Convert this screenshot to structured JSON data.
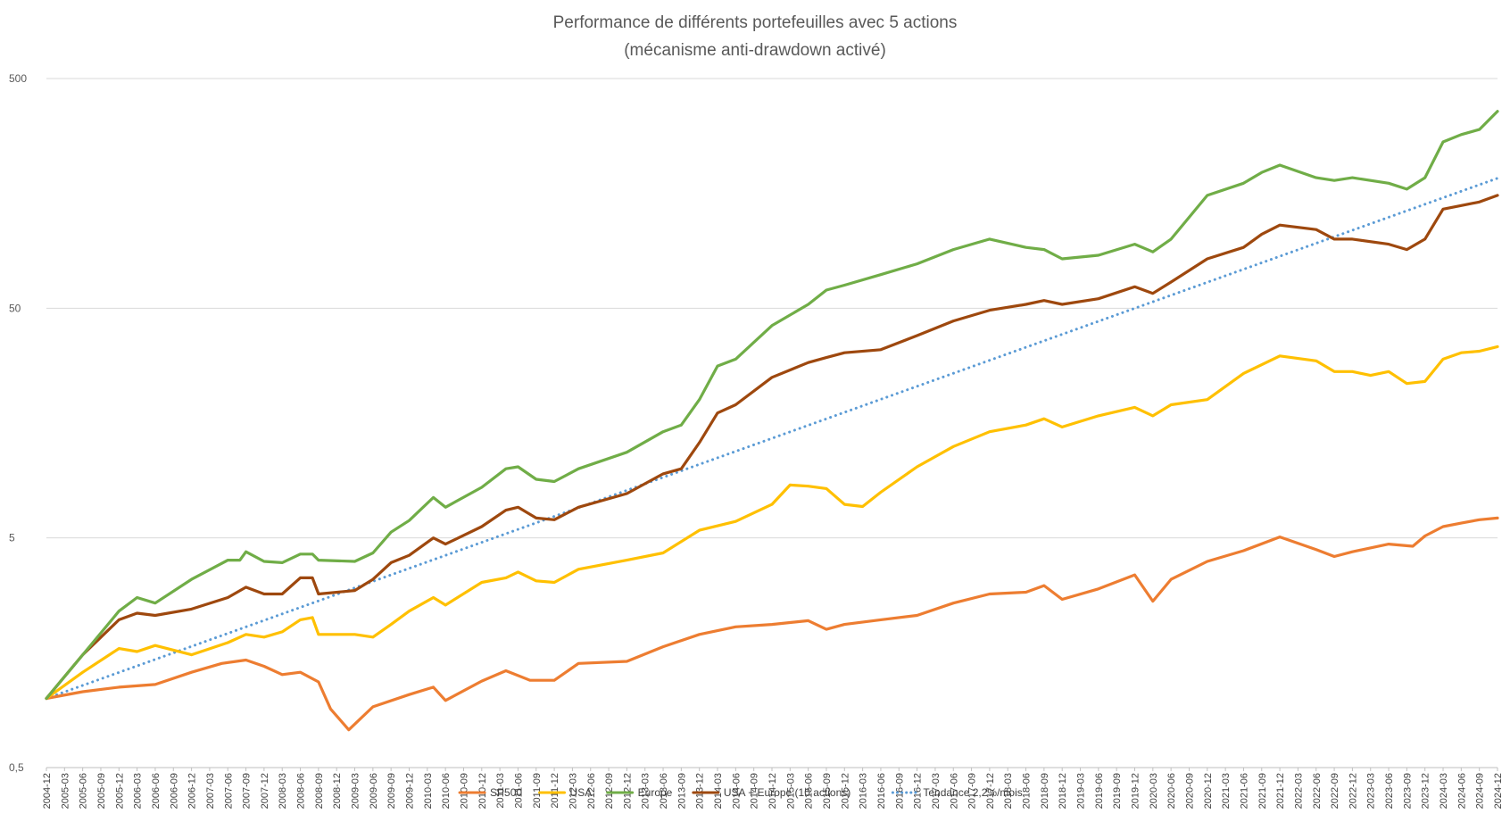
{
  "chart_data": {
    "type": "line",
    "title": "Performance de différents portefeuilles avec 5 actions",
    "subtitle": "(mécanisme anti-drawdown activé)",
    "y_scale": "log",
    "ylim": [
      0.5,
      500
    ],
    "y_ticks": [
      {
        "value": 500,
        "label": "500"
      },
      {
        "value": 50,
        "label": "50"
      },
      {
        "value": 5,
        "label": "5"
      },
      {
        "value": 0.5,
        "label": "0,5"
      }
    ],
    "x_start": "2004-12",
    "x_end": "2024-12",
    "x_tick_labels": [
      "2004-12",
      "2005-03",
      "2005-06",
      "2005-09",
      "2005-12",
      "2006-03",
      "2006-06",
      "2006-09",
      "2006-12",
      "2007-03",
      "2007-06",
      "2007-09",
      "2007-12",
      "2008-03",
      "2008-06",
      "2008-09",
      "2008-12",
      "2009-03",
      "2009-06",
      "2009-09",
      "2009-12",
      "2010-03",
      "2010-06",
      "2010-09",
      "2010-12",
      "2011-03",
      "2011-06",
      "2011-09",
      "2011-12",
      "2012-03",
      "2012-06",
      "2012-09",
      "2012-12",
      "2013-03",
      "2013-06",
      "2013-09",
      "2013-12",
      "2014-03",
      "2014-06",
      "2014-09",
      "2014-12",
      "2015-03",
      "2015-06",
      "2015-09",
      "2015-12",
      "2016-03",
      "2016-06",
      "2016-09",
      "2016-12",
      "2017-03",
      "2017-06",
      "2017-09",
      "2017-12",
      "2018-03",
      "2018-06",
      "2018-09",
      "2018-12",
      "2019-03",
      "2019-06",
      "2019-09",
      "2019-12",
      "2020-03",
      "2020-06",
      "2020-09",
      "2020-12",
      "2021-03",
      "2021-06",
      "2021-09",
      "2021-12",
      "2022-03",
      "2022-06",
      "2022-09",
      "2022-12",
      "2023-03",
      "2023-06",
      "2023-09",
      "2023-12",
      "2024-03",
      "2024-06",
      "2024-09",
      "2024-12"
    ],
    "legend_position": "bottom",
    "grid": true,
    "series": [
      {
        "name": "SP500",
        "color": "#ED7D31",
        "style": "solid",
        "points": [
          [
            "2004-12",
            1.0
          ],
          [
            "2005-06",
            1.07
          ],
          [
            "2005-12",
            1.12
          ],
          [
            "2006-06",
            1.15
          ],
          [
            "2006-12",
            1.3
          ],
          [
            "2007-05",
            1.42
          ],
          [
            "2007-09",
            1.47
          ],
          [
            "2007-12",
            1.38
          ],
          [
            "2008-03",
            1.27
          ],
          [
            "2008-06",
            1.3
          ],
          [
            "2008-09",
            1.18
          ],
          [
            "2008-11",
            0.9
          ],
          [
            "2009-02",
            0.73
          ],
          [
            "2009-06",
            0.92
          ],
          [
            "2009-12",
            1.04
          ],
          [
            "2010-04",
            1.12
          ],
          [
            "2010-06",
            0.98
          ],
          [
            "2010-12",
            1.19
          ],
          [
            "2011-04",
            1.32
          ],
          [
            "2011-08",
            1.2
          ],
          [
            "2011-12",
            1.2
          ],
          [
            "2012-04",
            1.42
          ],
          [
            "2012-12",
            1.45
          ],
          [
            "2013-06",
            1.68
          ],
          [
            "2013-12",
            1.9
          ],
          [
            "2014-06",
            2.05
          ],
          [
            "2014-12",
            2.1
          ],
          [
            "2015-06",
            2.18
          ],
          [
            "2015-09",
            2.0
          ],
          [
            "2015-12",
            2.1
          ],
          [
            "2016-06",
            2.2
          ],
          [
            "2016-12",
            2.3
          ],
          [
            "2017-06",
            2.6
          ],
          [
            "2017-12",
            2.85
          ],
          [
            "2018-06",
            2.9
          ],
          [
            "2018-09",
            3.1
          ],
          [
            "2018-12",
            2.7
          ],
          [
            "2019-06",
            3.0
          ],
          [
            "2019-12",
            3.45
          ],
          [
            "2020-03",
            2.65
          ],
          [
            "2020-06",
            3.3
          ],
          [
            "2020-12",
            3.95
          ],
          [
            "2021-06",
            4.4
          ],
          [
            "2021-12",
            5.05
          ],
          [
            "2022-06",
            4.45
          ],
          [
            "2022-09",
            4.15
          ],
          [
            "2022-12",
            4.35
          ],
          [
            "2023-06",
            4.7
          ],
          [
            "2023-10",
            4.6
          ],
          [
            "2023-12",
            5.1
          ],
          [
            "2024-03",
            5.6
          ],
          [
            "2024-06",
            5.8
          ],
          [
            "2024-09",
            6.0
          ],
          [
            "2024-12",
            6.1
          ]
        ]
      },
      {
        "name": "USA",
        "color": "#FFC000",
        "style": "solid",
        "points": [
          [
            "2004-12",
            1.0
          ],
          [
            "2005-06",
            1.3
          ],
          [
            "2005-12",
            1.65
          ],
          [
            "2006-03",
            1.6
          ],
          [
            "2006-06",
            1.7
          ],
          [
            "2006-12",
            1.55
          ],
          [
            "2007-06",
            1.75
          ],
          [
            "2007-09",
            1.9
          ],
          [
            "2007-12",
            1.85
          ],
          [
            "2008-03",
            1.95
          ],
          [
            "2008-06",
            2.2
          ],
          [
            "2008-08",
            2.25
          ],
          [
            "2008-09",
            1.9
          ],
          [
            "2009-03",
            1.9
          ],
          [
            "2009-06",
            1.85
          ],
          [
            "2009-09",
            2.1
          ],
          [
            "2009-12",
            2.4
          ],
          [
            "2010-04",
            2.75
          ],
          [
            "2010-06",
            2.55
          ],
          [
            "2010-12",
            3.2
          ],
          [
            "2011-04",
            3.35
          ],
          [
            "2011-06",
            3.55
          ],
          [
            "2011-09",
            3.25
          ],
          [
            "2011-12",
            3.2
          ],
          [
            "2012-04",
            3.65
          ],
          [
            "2012-12",
            4.0
          ],
          [
            "2013-06",
            4.3
          ],
          [
            "2013-12",
            5.4
          ],
          [
            "2014-06",
            5.9
          ],
          [
            "2014-12",
            7.0
          ],
          [
            "2015-03",
            8.5
          ],
          [
            "2015-06",
            8.4
          ],
          [
            "2015-09",
            8.2
          ],
          [
            "2015-12",
            7.0
          ],
          [
            "2016-03",
            6.85
          ],
          [
            "2016-06",
            7.9
          ],
          [
            "2016-12",
            10.2
          ],
          [
            "2017-06",
            12.5
          ],
          [
            "2017-12",
            14.5
          ],
          [
            "2018-06",
            15.5
          ],
          [
            "2018-09",
            16.5
          ],
          [
            "2018-12",
            15.2
          ],
          [
            "2019-06",
            17.0
          ],
          [
            "2019-12",
            18.5
          ],
          [
            "2020-03",
            17.0
          ],
          [
            "2020-06",
            19.0
          ],
          [
            "2020-12",
            20.0
          ],
          [
            "2021-06",
            26.0
          ],
          [
            "2021-12",
            31.0
          ],
          [
            "2022-06",
            29.5
          ],
          [
            "2022-09",
            26.5
          ],
          [
            "2022-12",
            26.5
          ],
          [
            "2023-03",
            25.5
          ],
          [
            "2023-06",
            26.5
          ],
          [
            "2023-09",
            23.5
          ],
          [
            "2023-12",
            24.0
          ],
          [
            "2024-03",
            30.0
          ],
          [
            "2024-06",
            32.0
          ],
          [
            "2024-09",
            32.5
          ],
          [
            "2024-12",
            34.0
          ]
        ]
      },
      {
        "name": "Europe",
        "color": "#70AD47",
        "style": "solid",
        "points": [
          [
            "2004-12",
            1.0
          ],
          [
            "2005-06",
            1.55
          ],
          [
            "2005-12",
            2.4
          ],
          [
            "2006-03",
            2.75
          ],
          [
            "2006-06",
            2.6
          ],
          [
            "2006-12",
            3.3
          ],
          [
            "2007-06",
            4.0
          ],
          [
            "2007-08",
            4.0
          ],
          [
            "2007-09",
            4.35
          ],
          [
            "2007-12",
            3.95
          ],
          [
            "2008-03",
            3.9
          ],
          [
            "2008-06",
            4.25
          ],
          [
            "2008-08",
            4.25
          ],
          [
            "2008-09",
            4.0
          ],
          [
            "2009-03",
            3.95
          ],
          [
            "2009-06",
            4.3
          ],
          [
            "2009-09",
            5.3
          ],
          [
            "2009-12",
            5.95
          ],
          [
            "2010-04",
            7.5
          ],
          [
            "2010-06",
            6.8
          ],
          [
            "2010-12",
            8.3
          ],
          [
            "2011-04",
            10.0
          ],
          [
            "2011-06",
            10.2
          ],
          [
            "2011-09",
            9.0
          ],
          [
            "2011-12",
            8.8
          ],
          [
            "2012-04",
            10.0
          ],
          [
            "2012-12",
            11.8
          ],
          [
            "2013-06",
            14.5
          ],
          [
            "2013-09",
            15.5
          ],
          [
            "2013-12",
            20.0
          ],
          [
            "2014-03",
            28.0
          ],
          [
            "2014-06",
            30.0
          ],
          [
            "2014-12",
            42.0
          ],
          [
            "2015-06",
            52.0
          ],
          [
            "2015-09",
            60.0
          ],
          [
            "2015-12",
            63.0
          ],
          [
            "2016-06",
            70.0
          ],
          [
            "2016-12",
            78.0
          ],
          [
            "2017-06",
            90.0
          ],
          [
            "2017-12",
            100.0
          ],
          [
            "2018-06",
            92.0
          ],
          [
            "2018-09",
            90.0
          ],
          [
            "2018-12",
            82.0
          ],
          [
            "2019-06",
            85.0
          ],
          [
            "2019-12",
            95.0
          ],
          [
            "2020-03",
            88.0
          ],
          [
            "2020-06",
            100.0
          ],
          [
            "2020-12",
            155.0
          ],
          [
            "2021-06",
            175.0
          ],
          [
            "2021-09",
            195.0
          ],
          [
            "2021-12",
            210.0
          ],
          [
            "2022-06",
            185.0
          ],
          [
            "2022-09",
            180.0
          ],
          [
            "2022-12",
            185.0
          ],
          [
            "2023-06",
            175.0
          ],
          [
            "2023-09",
            165.0
          ],
          [
            "2023-12",
            185.0
          ],
          [
            "2024-03",
            265.0
          ],
          [
            "2024-06",
            285.0
          ],
          [
            "2024-09",
            300.0
          ],
          [
            "2024-12",
            360.0
          ]
        ]
      },
      {
        "name": "USA + Europe (10 actions)",
        "color": "#9E480E",
        "style": "solid",
        "points": [
          [
            "2004-12",
            1.0
          ],
          [
            "2005-06",
            1.55
          ],
          [
            "2005-12",
            2.2
          ],
          [
            "2006-03",
            2.35
          ],
          [
            "2006-06",
            2.3
          ],
          [
            "2006-12",
            2.45
          ],
          [
            "2007-06",
            2.75
          ],
          [
            "2007-09",
            3.05
          ],
          [
            "2007-12",
            2.85
          ],
          [
            "2008-03",
            2.85
          ],
          [
            "2008-06",
            3.35
          ],
          [
            "2008-08",
            3.35
          ],
          [
            "2008-09",
            2.85
          ],
          [
            "2009-03",
            2.95
          ],
          [
            "2009-06",
            3.3
          ],
          [
            "2009-09",
            3.9
          ],
          [
            "2009-12",
            4.2
          ],
          [
            "2010-04",
            5.0
          ],
          [
            "2010-06",
            4.7
          ],
          [
            "2010-12",
            5.6
          ],
          [
            "2011-04",
            6.6
          ],
          [
            "2011-06",
            6.8
          ],
          [
            "2011-09",
            6.1
          ],
          [
            "2011-12",
            6.0
          ],
          [
            "2012-04",
            6.8
          ],
          [
            "2012-12",
            7.8
          ],
          [
            "2013-06",
            9.5
          ],
          [
            "2013-09",
            10.0
          ],
          [
            "2013-12",
            13.0
          ],
          [
            "2014-03",
            17.5
          ],
          [
            "2014-06",
            19.0
          ],
          [
            "2014-12",
            25.0
          ],
          [
            "2015-06",
            29.0
          ],
          [
            "2015-09",
            30.5
          ],
          [
            "2015-12",
            32.0
          ],
          [
            "2016-06",
            33.0
          ],
          [
            "2016-12",
            38.0
          ],
          [
            "2017-06",
            44.0
          ],
          [
            "2017-12",
            49.0
          ],
          [
            "2018-06",
            52.0
          ],
          [
            "2018-09",
            54.0
          ],
          [
            "2018-12",
            52.0
          ],
          [
            "2019-06",
            55.0
          ],
          [
            "2019-12",
            62.0
          ],
          [
            "2020-03",
            58.0
          ],
          [
            "2020-06",
            65.0
          ],
          [
            "2020-12",
            82.0
          ],
          [
            "2021-06",
            92.0
          ],
          [
            "2021-09",
            105.0
          ],
          [
            "2021-12",
            115.0
          ],
          [
            "2022-06",
            110.0
          ],
          [
            "2022-09",
            100.0
          ],
          [
            "2022-12",
            100.0
          ],
          [
            "2023-06",
            95.0
          ],
          [
            "2023-09",
            90.0
          ],
          [
            "2023-12",
            100.0
          ],
          [
            "2024-03",
            135.0
          ],
          [
            "2024-06",
            140.0
          ],
          [
            "2024-09",
            145.0
          ],
          [
            "2024-12",
            155.0
          ]
        ]
      },
      {
        "name": "Tendance 2,2%/mois",
        "color": "#5B9BD5",
        "style": "dotted",
        "points": [
          [
            "2004-12",
            1.0
          ],
          [
            "2024-12",
            184.0
          ]
        ]
      }
    ]
  }
}
